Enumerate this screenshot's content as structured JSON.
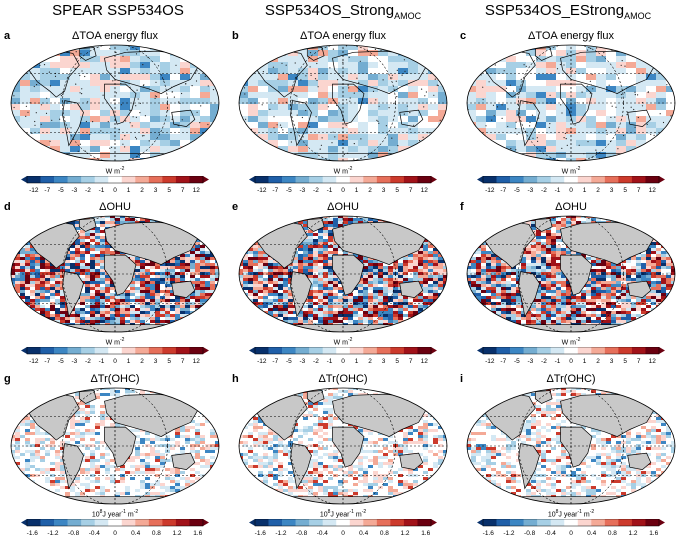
{
  "columns": [
    {
      "title": "SPEAR SSP534OS",
      "sub": ""
    },
    {
      "title": "SSP534OS_Strong",
      "sub": "AMOC"
    },
    {
      "title": "SSP534OS_EStrong",
      "sub": "AMOC"
    }
  ],
  "rows": [
    {
      "title": "ΔTOA energy flux",
      "letters": [
        "a",
        "b",
        "c"
      ],
      "unit": "W m",
      "unit_sup": "-2",
      "ticks": [
        "-12",
        "-7",
        "-5",
        "-3",
        "-2",
        "-1",
        "0",
        "1",
        "2",
        "3",
        "5",
        "7",
        "12"
      ],
      "style": "toa"
    },
    {
      "title": "ΔOHU",
      "letters": [
        "d",
        "e",
        "f"
      ],
      "unit": "W m",
      "unit_sup": "-2",
      "ticks": [
        "-12",
        "-7",
        "-5",
        "-3",
        "-2",
        "-1",
        "0",
        "1",
        "2",
        "3",
        "5",
        "7",
        "12"
      ],
      "style": "ohu"
    },
    {
      "title": "ΔTr(OHC)",
      "letters": [
        "g",
        "h",
        "i"
      ],
      "unit": "10",
      "unit_parts": [
        "10",
        "8",
        "J year",
        "-1",
        " m",
        "-2"
      ],
      "ticks": [
        "-1.6",
        "-1.2",
        "-0.8",
        "-0.4",
        "0",
        "0.4",
        "0.8",
        "1.2",
        "1.6"
      ],
      "style": "ohc"
    }
  ],
  "colors": {
    "land": "#c8c8c8",
    "scale": [
      "#08306b",
      "#1f5fa8",
      "#3c86c3",
      "#74add1",
      "#a6cfe5",
      "#d4e8f3",
      "#ffffff",
      "#fbd5cf",
      "#f4a996",
      "#e66f5a",
      "#cc3a2c",
      "#a11219",
      "#6b0010"
    ]
  }
}
